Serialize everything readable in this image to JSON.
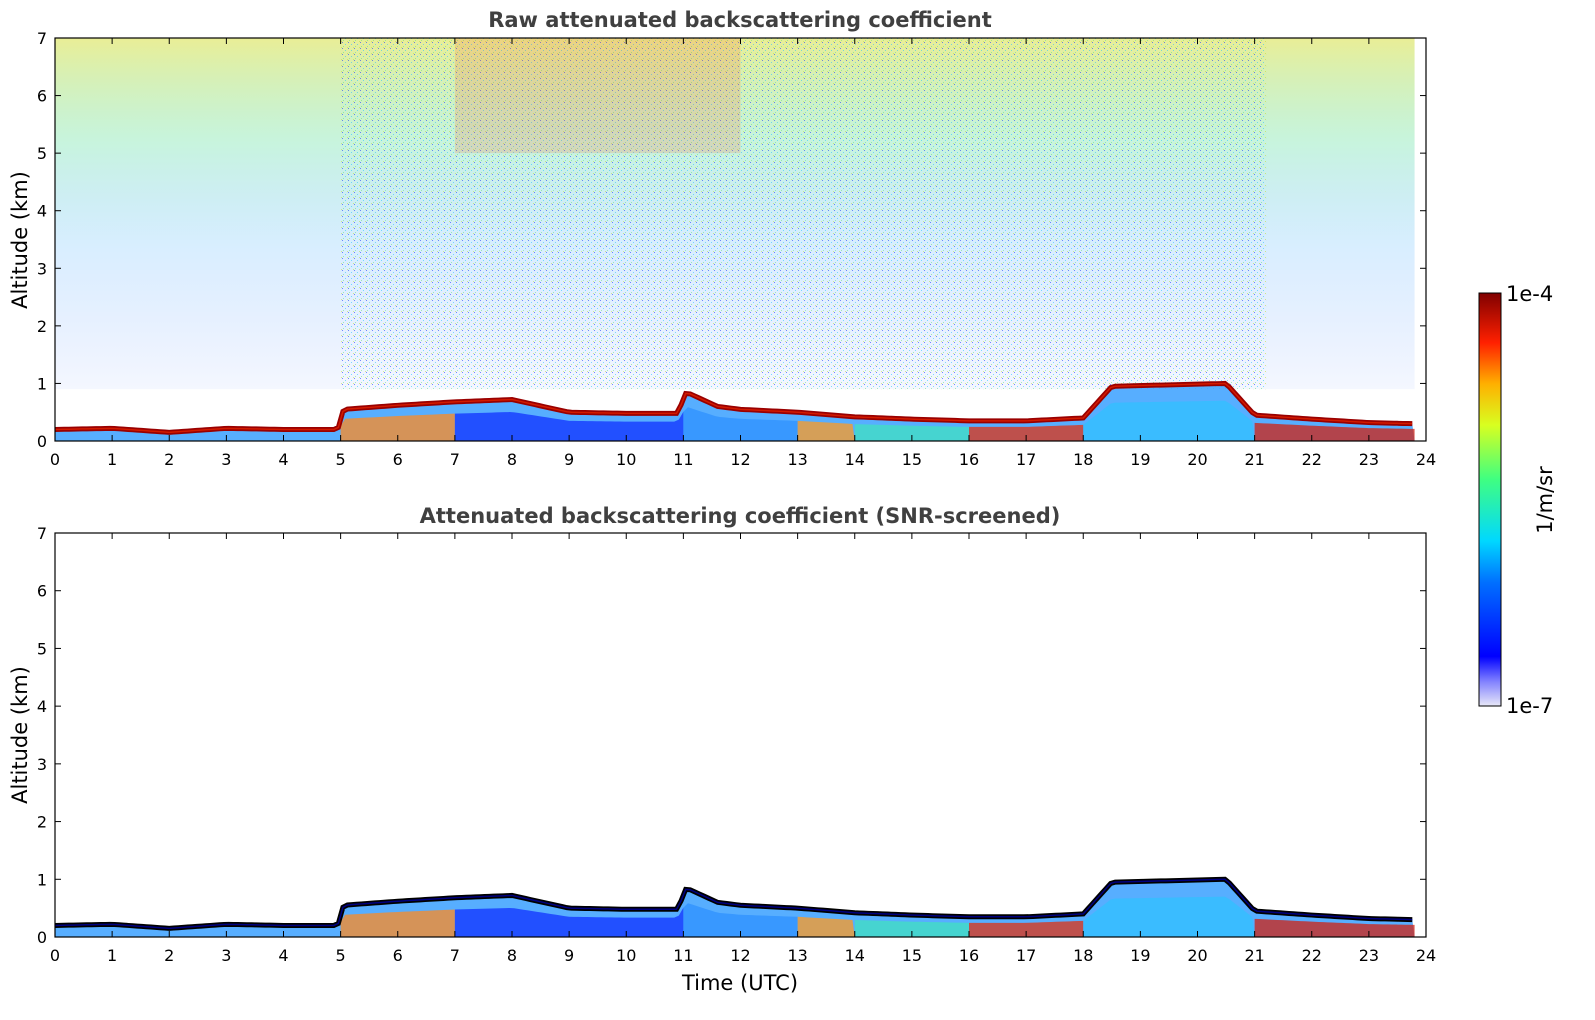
{
  "chart_data": [
    {
      "type": "heatmap",
      "title": "Raw attenuated backscattering coefficient",
      "xlabel": "",
      "ylabel": "Altitude (km)",
      "xlim": [
        0,
        24
      ],
      "ylim": [
        0,
        7
      ],
      "x_ticks": [
        "0",
        "1",
        "2",
        "3",
        "4",
        "5",
        "6",
        "7",
        "8",
        "9",
        "10",
        "11",
        "12",
        "13",
        "14",
        "15",
        "16",
        "17",
        "18",
        "19",
        "20",
        "21",
        "22",
        "23",
        "24"
      ],
      "y_ticks": [
        "0",
        "1",
        "2",
        "3",
        "4",
        "5",
        "6",
        "7"
      ],
      "layer_top_km": [
        [
          0,
          0.2
        ],
        [
          1,
          0.22
        ],
        [
          2,
          0.15
        ],
        [
          3,
          0.22
        ],
        [
          4,
          0.2
        ],
        [
          4.95,
          0.2
        ],
        [
          5.05,
          0.55
        ],
        [
          6,
          0.62
        ],
        [
          7,
          0.68
        ],
        [
          8,
          0.72
        ],
        [
          9,
          0.5
        ],
        [
          10,
          0.48
        ],
        [
          10.9,
          0.48
        ],
        [
          11.05,
          0.85
        ],
        [
          11.6,
          0.6
        ],
        [
          12,
          0.55
        ],
        [
          13,
          0.5
        ],
        [
          14,
          0.42
        ],
        [
          15,
          0.38
        ],
        [
          16,
          0.35
        ],
        [
          17,
          0.35
        ],
        [
          18,
          0.4
        ],
        [
          18.5,
          0.95
        ],
        [
          20.5,
          1.0
        ],
        [
          21,
          0.45
        ],
        [
          22,
          0.38
        ],
        [
          23,
          0.32
        ],
        [
          23.8,
          0.3
        ]
      ],
      "noise_note_free": true
    },
    {
      "type": "heatmap",
      "title": "Attenuated backscattering coefficient (SNR-screened)",
      "xlabel": "Time (UTC)",
      "ylabel": "Altitude (km)",
      "xlim": [
        0,
        24
      ],
      "ylim": [
        0,
        7
      ],
      "x_ticks": [
        "0",
        "1",
        "2",
        "3",
        "4",
        "5",
        "6",
        "7",
        "8",
        "9",
        "10",
        "11",
        "12",
        "13",
        "14",
        "15",
        "16",
        "17",
        "18",
        "19",
        "20",
        "21",
        "22",
        "23",
        "24"
      ],
      "y_ticks": [
        "0",
        "1",
        "2",
        "3",
        "4",
        "5",
        "6",
        "7"
      ]
    }
  ],
  "colorbar": {
    "max_label": "1e-4",
    "min_label": "1e-7",
    "unit_label": "1/m/sr",
    "colormap": "jet",
    "scale": "log",
    "range": [
      1e-07,
      0.0001
    ]
  }
}
